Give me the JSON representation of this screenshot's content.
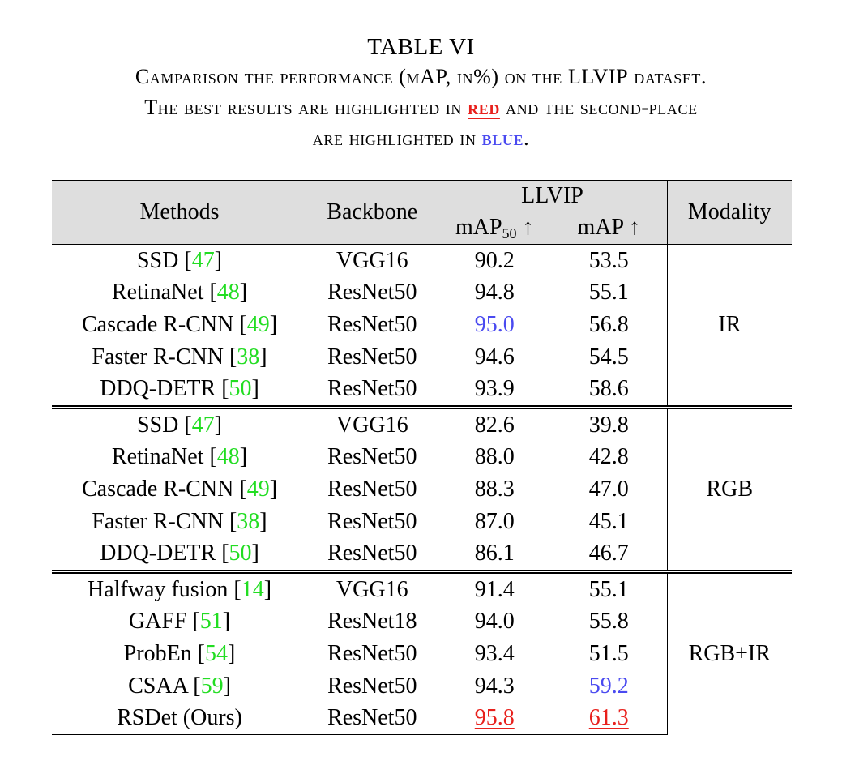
{
  "caption": {
    "table_number": "TABLE VI",
    "line1_part1": "Camparison the performance (mAP, in%) on the ",
    "line1_dataset": "LLVIP",
    "line1_part2": " dataset.",
    "line2_part1": "The best results are highlighted in ",
    "line2_red_word": "red",
    "line2_part2": " and the second-place",
    "line3_part1": "are highlighted in ",
    "line3_blue_word": "blue",
    "line3_part2": "."
  },
  "table": {
    "headers": {
      "methods": "Methods",
      "backbone": "Backbone",
      "dataset": "LLVIP",
      "map50_label": "mAP",
      "map50_sub": "50",
      "map50_arrow": " ↑",
      "map": "mAP ↑",
      "modality": "Modality"
    },
    "groups": [
      {
        "modality": "IR",
        "rows": [
          {
            "method": "SSD ",
            "ref": "47",
            "backbone": "VGG16",
            "map50": "90.2",
            "map": "53.5"
          },
          {
            "method": "RetinaNet ",
            "ref": "48",
            "backbone": "ResNet50",
            "map50": "94.8",
            "map": "55.1"
          },
          {
            "method": "Cascade R-CNN ",
            "ref": "49",
            "backbone": "ResNet50",
            "map50": "95.0",
            "map": "56.8"
          },
          {
            "method": "Faster R-CNN ",
            "ref": "38",
            "backbone": "ResNet50",
            "map50": "94.6",
            "map": "54.5"
          },
          {
            "method": "DDQ-DETR ",
            "ref": "50",
            "backbone": "ResNet50",
            "map50": "93.9",
            "map": "58.6"
          }
        ]
      },
      {
        "modality": "RGB",
        "rows": [
          {
            "method": "SSD ",
            "ref": "47",
            "backbone": "VGG16",
            "map50": "82.6",
            "map": "39.8"
          },
          {
            "method": "RetinaNet ",
            "ref": "48",
            "backbone": "ResNet50",
            "map50": "88.0",
            "map": "42.8"
          },
          {
            "method": "Cascade R-CNN ",
            "ref": "49",
            "backbone": "ResNet50",
            "map50": "88.3",
            "map": "47.0"
          },
          {
            "method": "Faster R-CNN ",
            "ref": "38",
            "backbone": "ResNet50",
            "map50": "87.0",
            "map": "45.1"
          },
          {
            "method": "DDQ-DETR ",
            "ref": "50",
            "backbone": "ResNet50",
            "map50": "86.1",
            "map": "46.7"
          }
        ]
      },
      {
        "modality": "RGB+IR",
        "rows": [
          {
            "method": "Halfway fusion ",
            "ref": "14",
            "backbone": "VGG16",
            "map50": "91.4",
            "map": "55.1"
          },
          {
            "method": "GAFF ",
            "ref": "51",
            "backbone": "ResNet18",
            "map50": "94.0",
            "map": "55.8"
          },
          {
            "method": "ProbEn ",
            "ref": "54",
            "backbone": "ResNet50",
            "map50": "93.4",
            "map": "51.5"
          },
          {
            "method": "CSAA ",
            "ref": "59",
            "backbone": "ResNet50",
            "map50": "94.3",
            "map": "59.2"
          },
          {
            "method": "RSDet (Ours)",
            "ref": "",
            "backbone": "ResNet50",
            "map50": "95.8",
            "map": "61.3"
          }
        ]
      }
    ]
  },
  "colors": {
    "best": "#e8201c",
    "second": "#4a4af0",
    "citation": "#22dd22",
    "header_background": "#dedede"
  }
}
